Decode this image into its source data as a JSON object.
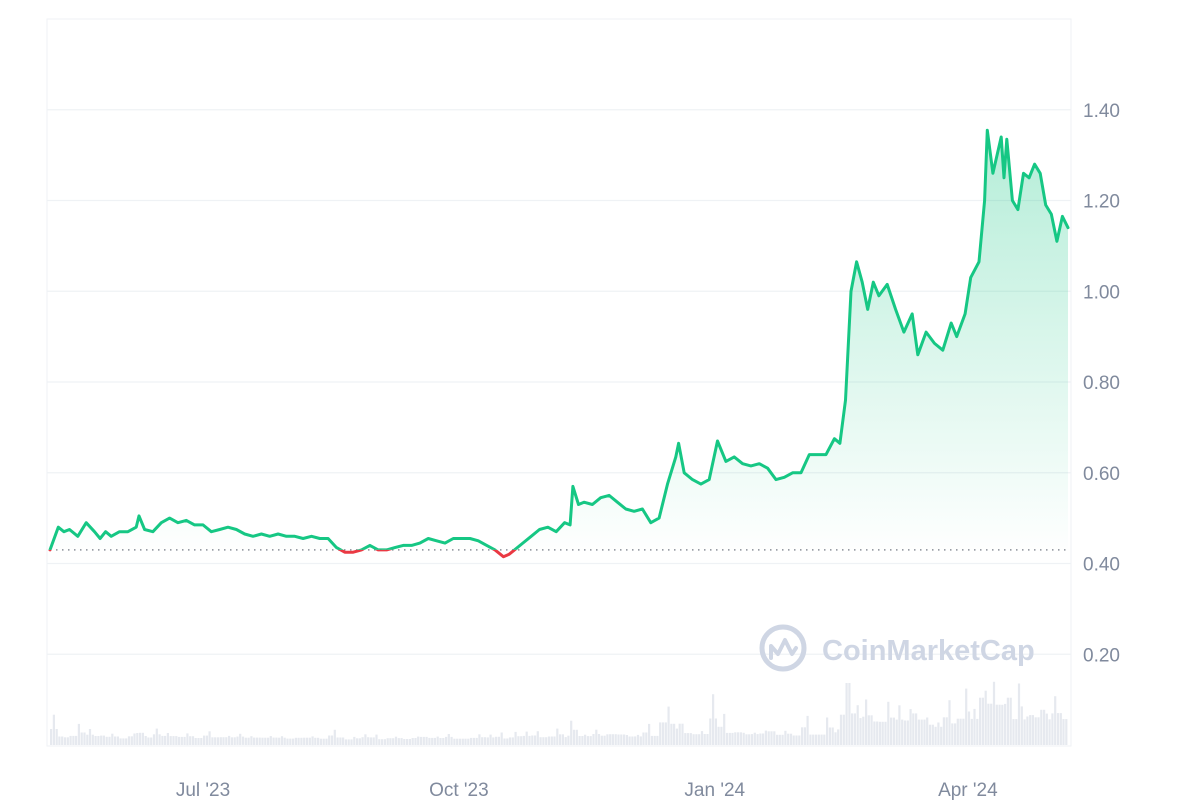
{
  "chart_data": {
    "type": "area",
    "y_ticks": [
      {
        "value": 1.4,
        "label": "1.40"
      },
      {
        "value": 1.2,
        "label": "1.20"
      },
      {
        "value": 1.0,
        "label": "1.00"
      },
      {
        "value": 0.8,
        "label": "0.80"
      },
      {
        "value": 0.6,
        "label": "0.60"
      },
      {
        "value": 0.4,
        "label": "0.40"
      },
      {
        "value": 0.2,
        "label": "0.20"
      }
    ],
    "x_ticks": [
      {
        "date": "2023-07-01",
        "label": "Jul '23"
      },
      {
        "date": "2023-10-01",
        "label": "Oct '23"
      },
      {
        "date": "2024-01-01",
        "label": "Jan '24"
      },
      {
        "date": "2024-04-01",
        "label": "Apr '24"
      }
    ],
    "x_range": [
      "2023-05-07",
      "2024-05-07"
    ],
    "y_range": [
      0,
      1.6
    ],
    "baseline_value": 0.43,
    "grid": true,
    "legend": "none",
    "colors": {
      "above_baseline": "#16c784",
      "below_baseline": "#ea3943",
      "area_fill_top": "#16c784",
      "baseline": "#8a8f98",
      "grid": "#eff2f5",
      "volume": "#e6e9ef"
    },
    "series": [
      {
        "points": [
          [
            "2023-05-07",
            0.43
          ],
          [
            "2023-05-10",
            0.48
          ],
          [
            "2023-05-12",
            0.47
          ],
          [
            "2023-05-14",
            0.475
          ],
          [
            "2023-05-17",
            0.46
          ],
          [
            "2023-05-20",
            0.49
          ],
          [
            "2023-05-23",
            0.47
          ],
          [
            "2023-05-25",
            0.455
          ],
          [
            "2023-05-27",
            0.47
          ],
          [
            "2023-05-29",
            0.46
          ],
          [
            "2023-06-01",
            0.47
          ],
          [
            "2023-06-04",
            0.47
          ],
          [
            "2023-06-07",
            0.48
          ],
          [
            "2023-06-08",
            0.505
          ],
          [
            "2023-06-10",
            0.475
          ],
          [
            "2023-06-13",
            0.47
          ],
          [
            "2023-06-16",
            0.49
          ],
          [
            "2023-06-19",
            0.5
          ],
          [
            "2023-06-22",
            0.49
          ],
          [
            "2023-06-25",
            0.495
          ],
          [
            "2023-06-28",
            0.485
          ],
          [
            "2023-07-01",
            0.485
          ],
          [
            "2023-07-04",
            0.47
          ],
          [
            "2023-07-07",
            0.475
          ],
          [
            "2023-07-10",
            0.48
          ],
          [
            "2023-07-13",
            0.475
          ],
          [
            "2023-07-16",
            0.465
          ],
          [
            "2023-07-19",
            0.46
          ],
          [
            "2023-07-22",
            0.465
          ],
          [
            "2023-07-25",
            0.46
          ],
          [
            "2023-07-28",
            0.465
          ],
          [
            "2023-07-31",
            0.46
          ],
          [
            "2023-08-03",
            0.46
          ],
          [
            "2023-08-06",
            0.455
          ],
          [
            "2023-08-09",
            0.46
          ],
          [
            "2023-08-12",
            0.455
          ],
          [
            "2023-08-15",
            0.455
          ],
          [
            "2023-08-18",
            0.435
          ],
          [
            "2023-08-21",
            0.425
          ],
          [
            "2023-08-24",
            0.425
          ],
          [
            "2023-08-27",
            0.43
          ],
          [
            "2023-08-30",
            0.44
          ],
          [
            "2023-09-02",
            0.43
          ],
          [
            "2023-09-05",
            0.43
          ],
          [
            "2023-09-08",
            0.435
          ],
          [
            "2023-09-11",
            0.44
          ],
          [
            "2023-09-14",
            0.44
          ],
          [
            "2023-09-17",
            0.445
          ],
          [
            "2023-09-20",
            0.455
          ],
          [
            "2023-09-23",
            0.45
          ],
          [
            "2023-09-26",
            0.445
          ],
          [
            "2023-09-29",
            0.455
          ],
          [
            "2023-10-02",
            0.455
          ],
          [
            "2023-10-05",
            0.455
          ],
          [
            "2023-10-08",
            0.45
          ],
          [
            "2023-10-11",
            0.44
          ],
          [
            "2023-10-14",
            0.43
          ],
          [
            "2023-10-17",
            0.415
          ],
          [
            "2023-10-19",
            0.42
          ],
          [
            "2023-10-21",
            0.43
          ],
          [
            "2023-10-24",
            0.445
          ],
          [
            "2023-10-27",
            0.46
          ],
          [
            "2023-10-30",
            0.475
          ],
          [
            "2023-11-02",
            0.48
          ],
          [
            "2023-11-05",
            0.47
          ],
          [
            "2023-11-08",
            0.49
          ],
          [
            "2023-11-10",
            0.485
          ],
          [
            "2023-11-11",
            0.57
          ],
          [
            "2023-11-13",
            0.53
          ],
          [
            "2023-11-15",
            0.535
          ],
          [
            "2023-11-18",
            0.53
          ],
          [
            "2023-11-21",
            0.545
          ],
          [
            "2023-11-24",
            0.55
          ],
          [
            "2023-11-27",
            0.535
          ],
          [
            "2023-11-30",
            0.52
          ],
          [
            "2023-12-03",
            0.515
          ],
          [
            "2023-12-06",
            0.52
          ],
          [
            "2023-12-09",
            0.49
          ],
          [
            "2023-12-12",
            0.5
          ],
          [
            "2023-12-15",
            0.575
          ],
          [
            "2023-12-18",
            0.635
          ],
          [
            "2023-12-19",
            0.665
          ],
          [
            "2023-12-21",
            0.6
          ],
          [
            "2023-12-24",
            0.585
          ],
          [
            "2023-12-27",
            0.575
          ],
          [
            "2023-12-30",
            0.585
          ],
          [
            "2024-01-02",
            0.67
          ],
          [
            "2024-01-05",
            0.625
          ],
          [
            "2024-01-08",
            0.635
          ],
          [
            "2024-01-11",
            0.62
          ],
          [
            "2024-01-14",
            0.615
          ],
          [
            "2024-01-17",
            0.62
          ],
          [
            "2024-01-20",
            0.61
          ],
          [
            "2024-01-23",
            0.585
          ],
          [
            "2024-01-26",
            0.59
          ],
          [
            "2024-01-29",
            0.6
          ],
          [
            "2024-02-01",
            0.6
          ],
          [
            "2024-02-04",
            0.64
          ],
          [
            "2024-02-07",
            0.64
          ],
          [
            "2024-02-10",
            0.64
          ],
          [
            "2024-02-13",
            0.675
          ],
          [
            "2024-02-15",
            0.665
          ],
          [
            "2024-02-17",
            0.76
          ],
          [
            "2024-02-19",
            1.0
          ],
          [
            "2024-02-21",
            1.065
          ],
          [
            "2024-02-23",
            1.02
          ],
          [
            "2024-02-25",
            0.96
          ],
          [
            "2024-02-27",
            1.02
          ],
          [
            "2024-02-29",
            0.99
          ],
          [
            "2024-03-03",
            1.015
          ],
          [
            "2024-03-06",
            0.96
          ],
          [
            "2024-03-09",
            0.91
          ],
          [
            "2024-03-12",
            0.95
          ],
          [
            "2024-03-14",
            0.86
          ],
          [
            "2024-03-17",
            0.91
          ],
          [
            "2024-03-20",
            0.885
          ],
          [
            "2024-03-23",
            0.87
          ],
          [
            "2024-03-26",
            0.93
          ],
          [
            "2024-03-28",
            0.9
          ],
          [
            "2024-03-31",
            0.95
          ],
          [
            "2024-04-02",
            1.03
          ],
          [
            "2024-04-05",
            1.065
          ],
          [
            "2024-04-07",
            1.2
          ],
          [
            "2024-04-08",
            1.355
          ],
          [
            "2024-04-10",
            1.26
          ],
          [
            "2024-04-13",
            1.34
          ],
          [
            "2024-04-14",
            1.25
          ],
          [
            "2024-04-15",
            1.335
          ],
          [
            "2024-04-17",
            1.2
          ],
          [
            "2024-04-19",
            1.18
          ],
          [
            "2024-04-21",
            1.26
          ],
          [
            "2024-04-23",
            1.25
          ],
          [
            "2024-04-25",
            1.28
          ],
          [
            "2024-04-27",
            1.26
          ],
          [
            "2024-04-29",
            1.19
          ],
          [
            "2024-05-01",
            1.17
          ],
          [
            "2024-05-03",
            1.11
          ],
          [
            "2024-05-05",
            1.165
          ],
          [
            "2024-05-07",
            1.14
          ]
        ]
      }
    ]
  },
  "watermark": {
    "text": "CoinMarketCap"
  }
}
